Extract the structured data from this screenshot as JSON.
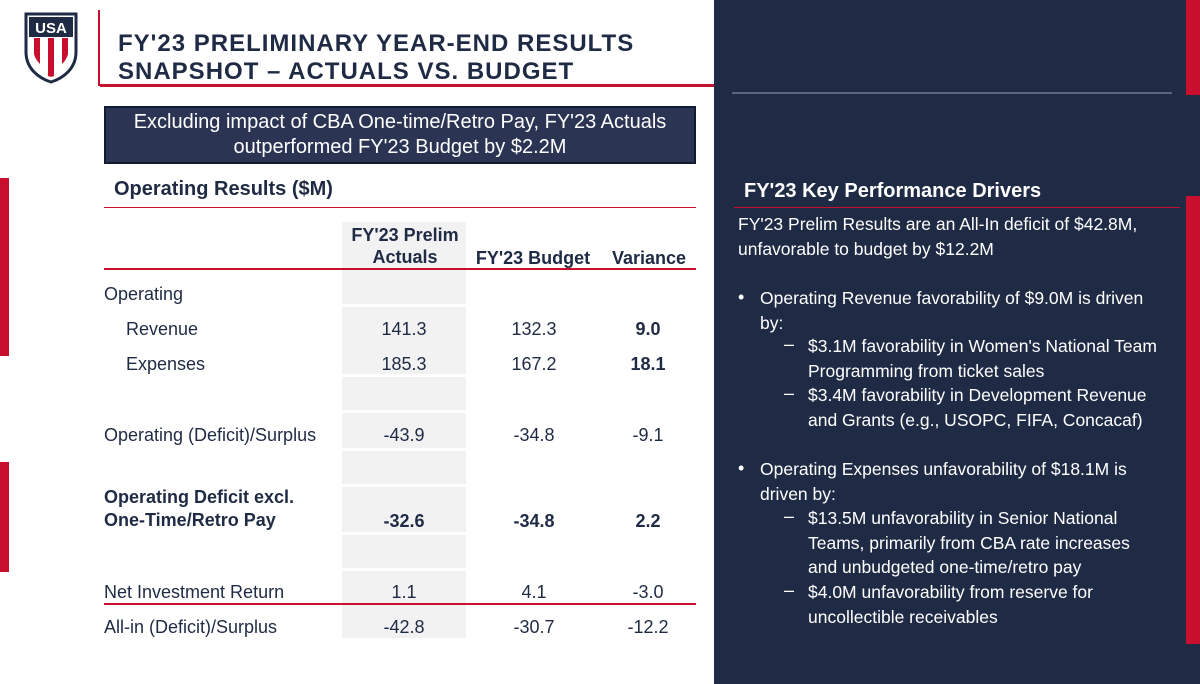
{
  "title": {
    "line1": "FY'23 PRELIMINARY YEAR-END RESULTS",
    "line2": "SNAPSHOT – ACTUALS VS. BUDGET"
  },
  "logo": {
    "text": "USA",
    "icon": "usa-crest-icon"
  },
  "callout": {
    "text": "Excluding impact of CBA One-time/Retro Pay, FY'23 Actuals outperformed FY'23 Budget by $2.2M"
  },
  "operating_results": {
    "title": "Operating Results ($M)",
    "columns": [
      "FY'23 Prelim Actuals",
      "FY'23 Budget",
      "Variance"
    ],
    "rows": [
      {
        "label": "Operating",
        "actuals": "",
        "budget": "",
        "variance": ""
      },
      {
        "label": "Revenue",
        "actuals": "141.3",
        "budget": "132.3",
        "variance": "9.0"
      },
      {
        "label": "Expenses",
        "actuals": "185.3",
        "budget": "167.2",
        "variance": "18.1"
      },
      {
        "label": "Operating (Deficit)/Surplus",
        "actuals": "-43.9",
        "budget": "-34.8",
        "variance": "-9.1"
      },
      {
        "label": "Operating Deficit excl. One-Time/Retro Pay",
        "label_line1": "Operating Deficit excl.",
        "label_line2": "One-Time/Retro Pay",
        "actuals": "-32.6",
        "budget": "-34.8",
        "variance": "2.2"
      },
      {
        "label": "Net Investment Return",
        "actuals": "1.1",
        "budget": "4.1",
        "variance": "-3.0"
      },
      {
        "label": "All-in (Deficit)/Surplus",
        "actuals": "-42.8",
        "budget": "-30.7",
        "variance": "-12.2"
      }
    ]
  },
  "drivers": {
    "title": "FY'23 Key Performance Drivers",
    "intro": "FY'23 Prelim Results are an All-In deficit of $42.8M, unfavorable to budget by $12.2M",
    "bullets": [
      {
        "text": "Operating Revenue favorability of $9.0M is driven by:",
        "subs": [
          "$3.1M favorability in Women's National Team Programming from ticket sales",
          "$3.4M favorability in Development Revenue and Grants (e.g., USOPC, FIFA, Concacaf)"
        ]
      },
      {
        "text": "Operating Expenses unfavorability of $18.1M is driven by:",
        "subs": [
          "$13.5M unfavorability in Senior National Teams, primarily from CBA rate increases and unbudgeted one-time/retro pay",
          "$4.0M unfavorability from reserve for uncollectible receivables"
        ]
      }
    ]
  },
  "colors": {
    "navy": "#1f2a44",
    "red": "#c8102e",
    "callout_bg": "#2c3454",
    "shade": "#f2f2f2"
  }
}
